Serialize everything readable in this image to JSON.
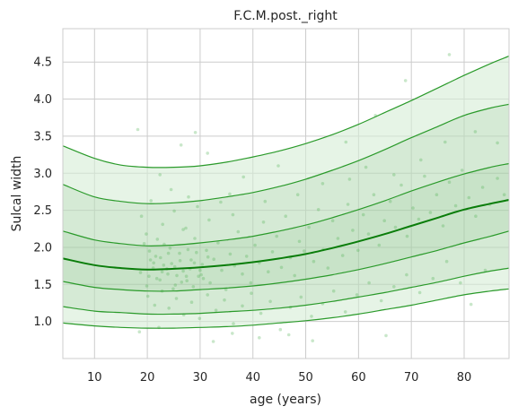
{
  "chart_data": {
    "type": "line",
    "title": "F.C.M.post._right",
    "xlabel": "age (years)",
    "ylabel": "Sulcal width",
    "xlim": [
      4,
      88.5
    ],
    "ylim": [
      0.5,
      4.95
    ],
    "xticks": [
      10,
      20,
      30,
      40,
      50,
      60,
      70,
      80
    ],
    "yticks": [
      1.0,
      1.5,
      2.0,
      2.5,
      3.0,
      3.5,
      4.0,
      4.5
    ],
    "xtick_labels": [
      "10",
      "20",
      "30",
      "40",
      "50",
      "60",
      "70",
      "80"
    ],
    "ytick_labels": [
      "1.0",
      "1.5",
      "2.0",
      "2.5",
      "3.0",
      "3.5",
      "4.0",
      "4.5"
    ],
    "grid": true,
    "legend": "none",
    "x": [
      4,
      10,
      15,
      20,
      25,
      30,
      35,
      40,
      45,
      50,
      55,
      60,
      65,
      70,
      75,
      80,
      85,
      88.5
    ],
    "series": [
      {
        "values": [
          3.37,
          3.2,
          3.11,
          3.08,
          3.08,
          3.1,
          3.15,
          3.22,
          3.3,
          3.4,
          3.52,
          3.66,
          3.82,
          3.98,
          4.15,
          4.32,
          4.48,
          4.58
        ]
      },
      {
        "values": [
          2.85,
          2.68,
          2.62,
          2.59,
          2.6,
          2.63,
          2.68,
          2.74,
          2.82,
          2.92,
          3.04,
          3.17,
          3.32,
          3.48,
          3.63,
          3.78,
          3.88,
          3.93
        ]
      },
      {
        "values": [
          2.22,
          2.1,
          2.05,
          2.02,
          2.03,
          2.06,
          2.1,
          2.15,
          2.22,
          2.3,
          2.4,
          2.51,
          2.63,
          2.76,
          2.88,
          2.99,
          3.08,
          3.13
        ]
      },
      {
        "values": [
          1.85,
          1.76,
          1.72,
          1.7,
          1.71,
          1.73,
          1.76,
          1.8,
          1.85,
          1.91,
          1.99,
          2.08,
          2.18,
          2.29,
          2.4,
          2.51,
          2.59,
          2.64
        ]
      },
      {
        "values": [
          1.54,
          1.46,
          1.43,
          1.41,
          1.41,
          1.43,
          1.45,
          1.48,
          1.52,
          1.57,
          1.63,
          1.7,
          1.78,
          1.87,
          1.96,
          2.06,
          2.15,
          2.22
        ]
      },
      {
        "values": [
          1.2,
          1.14,
          1.12,
          1.1,
          1.1,
          1.11,
          1.13,
          1.15,
          1.18,
          1.22,
          1.27,
          1.33,
          1.39,
          1.46,
          1.53,
          1.61,
          1.68,
          1.72
        ]
      },
      {
        "values": [
          0.98,
          0.94,
          0.92,
          0.91,
          0.91,
          0.92,
          0.93,
          0.95,
          0.98,
          1.01,
          1.05,
          1.1,
          1.16,
          1.22,
          1.29,
          1.36,
          1.41,
          1.44
        ]
      }
    ],
    "points": [
      [
        18.2,
        3.59
      ],
      [
        29.1,
        3.55
      ],
      [
        26.4,
        3.38
      ],
      [
        31.4,
        3.27
      ],
      [
        77.2,
        4.6
      ],
      [
        68.9,
        4.25
      ],
      [
        63.2,
        3.78
      ],
      [
        57.6,
        3.42
      ],
      [
        44.8,
        3.1
      ],
      [
        38.2,
        2.95
      ],
      [
        22.4,
        2.98
      ],
      [
        24.5,
        2.78
      ],
      [
        27.8,
        2.68
      ],
      [
        35.6,
        2.72
      ],
      [
        42.3,
        2.62
      ],
      [
        48.5,
        2.71
      ],
      [
        53.2,
        2.86
      ],
      [
        58.3,
        2.92
      ],
      [
        61.4,
        3.08
      ],
      [
        66.7,
        2.98
      ],
      [
        71.8,
        3.18
      ],
      [
        76.4,
        3.42
      ],
      [
        82.1,
        3.56
      ],
      [
        86.3,
        3.41
      ],
      [
        18.9,
        2.42
      ],
      [
        19.8,
        2.18
      ],
      [
        20.4,
        1.95
      ],
      [
        21.1,
        1.72
      ],
      [
        21.8,
        1.58
      ],
      [
        22.5,
        1.86
      ],
      [
        23.2,
        2.04
      ],
      [
        23.9,
        1.64
      ],
      [
        24.6,
        1.78
      ],
      [
        25.3,
        1.49
      ],
      [
        26.1,
        1.92
      ],
      [
        26.8,
        1.68
      ],
      [
        27.5,
        1.55
      ],
      [
        28.3,
        1.83
      ],
      [
        29.0,
        2.12
      ],
      [
        29.7,
        1.61
      ],
      [
        30.4,
        1.77
      ],
      [
        31.2,
        1.96
      ],
      [
        31.9,
        1.52
      ],
      [
        32.6,
        1.84
      ],
      [
        33.4,
        2.06
      ],
      [
        34.1,
        1.69
      ],
      [
        34.9,
        1.43
      ],
      [
        35.7,
        1.91
      ],
      [
        36.5,
        1.75
      ],
      [
        37.2,
        2.21
      ],
      [
        38.0,
        1.64
      ],
      [
        38.8,
        1.88
      ],
      [
        39.6,
        1.52
      ],
      [
        40.4,
        2.03
      ],
      [
        41.2,
        1.79
      ],
      [
        42.0,
        2.34
      ],
      [
        42.9,
        1.67
      ],
      [
        43.7,
        1.94
      ],
      [
        44.5,
        2.15
      ],
      [
        45.4,
        1.73
      ],
      [
        46.2,
        2.42
      ],
      [
        47.1,
        1.86
      ],
      [
        47.9,
        1.62
      ],
      [
        48.8,
        2.08
      ],
      [
        49.7,
        1.95
      ],
      [
        50.6,
        2.27
      ],
      [
        51.5,
        1.81
      ],
      [
        52.4,
        2.51
      ],
      [
        53.3,
        1.97
      ],
      [
        54.2,
        1.72
      ],
      [
        55.1,
        2.36
      ],
      [
        56.1,
        2.12
      ],
      [
        57.0,
        1.89
      ],
      [
        58.0,
        2.58
      ],
      [
        58.9,
        2.23
      ],
      [
        59.9,
        1.96
      ],
      [
        60.9,
        2.44
      ],
      [
        61.9,
        2.18
      ],
      [
        62.9,
        2.71
      ],
      [
        63.9,
        2.03
      ],
      [
        64.9,
        2.36
      ],
      [
        66.0,
        2.62
      ],
      [
        67.0,
        2.27
      ],
      [
        68.1,
        2.84
      ],
      [
        69.2,
        2.15
      ],
      [
        70.3,
        2.53
      ],
      [
        71.4,
        2.38
      ],
      [
        72.5,
        2.96
      ],
      [
        73.6,
        2.47
      ],
      [
        74.8,
        2.71
      ],
      [
        76.0,
        2.29
      ],
      [
        77.2,
        2.88
      ],
      [
        78.4,
        2.56
      ],
      [
        79.6,
        3.04
      ],
      [
        80.9,
        2.67
      ],
      [
        82.2,
        2.42
      ],
      [
        83.5,
        2.81
      ],
      [
        84.9,
        2.58
      ],
      [
        86.3,
        2.93
      ],
      [
        87.6,
        2.71
      ],
      [
        20.1,
        1.34
      ],
      [
        21.4,
        1.22
      ],
      [
        22.8,
        1.41
      ],
      [
        24.1,
        1.18
      ],
      [
        25.5,
        1.31
      ],
      [
        26.9,
        1.09
      ],
      [
        28.4,
        1.26
      ],
      [
        29.9,
        1.04
      ],
      [
        31.4,
        1.36
      ],
      [
        33.0,
        1.15
      ],
      [
        34.6,
        1.29
      ],
      [
        36.3,
        0.97
      ],
      [
        38.0,
        1.21
      ],
      [
        39.7,
        1.38
      ],
      [
        41.5,
        1.11
      ],
      [
        43.3,
        1.27
      ],
      [
        45.2,
        0.89
      ],
      [
        47.1,
        1.19
      ],
      [
        49.1,
        1.33
      ],
      [
        51.1,
        1.07
      ],
      [
        53.2,
        1.24
      ],
      [
        55.3,
        1.41
      ],
      [
        57.5,
        1.13
      ],
      [
        59.7,
        1.36
      ],
      [
        62.0,
        1.52
      ],
      [
        64.3,
        1.28
      ],
      [
        66.7,
        1.47
      ],
      [
        69.1,
        1.63
      ],
      [
        71.6,
        1.39
      ],
      [
        74.1,
        1.58
      ],
      [
        76.7,
        1.81
      ],
      [
        79.3,
        1.52
      ],
      [
        81.3,
        1.23
      ],
      [
        84.0,
        1.69
      ],
      [
        32.5,
        0.73
      ],
      [
        41.2,
        0.78
      ],
      [
        46.8,
        0.82
      ],
      [
        51.3,
        0.74
      ],
      [
        65.2,
        0.81
      ],
      [
        18.5,
        0.86
      ],
      [
        22.2,
        0.92
      ],
      [
        36.1,
        0.84
      ],
      [
        20.7,
        2.63
      ],
      [
        22.9,
        2.31
      ],
      [
        25.1,
        2.49
      ],
      [
        27.3,
        2.26
      ],
      [
        29.5,
        2.55
      ],
      [
        31.7,
        2.37
      ],
      [
        33.9,
        2.61
      ],
      [
        36.2,
        2.44
      ],
      [
        19.4,
        2.05
      ],
      [
        20.6,
        1.83
      ],
      [
        21.9,
        2.11
      ],
      [
        23.1,
        1.76
      ],
      [
        24.3,
        1.99
      ],
      [
        25.6,
        1.62
      ],
      [
        26.8,
        2.24
      ],
      [
        28.1,
        1.71
      ],
      [
        29.3,
        1.93
      ],
      [
        30.6,
        1.58
      ],
      [
        18.7,
        1.66
      ],
      [
        19.9,
        1.48
      ],
      [
        21.2,
        1.79
      ],
      [
        22.4,
        1.56
      ],
      [
        23.7,
        1.71
      ],
      [
        24.9,
        1.44
      ],
      [
        26.2,
        1.82
      ],
      [
        27.4,
        1.61
      ],
      [
        28.7,
        1.47
      ],
      [
        30.0,
        1.69
      ],
      [
        20.3,
        1.61
      ],
      [
        21.6,
        1.88
      ],
      [
        22.8,
        1.67
      ],
      [
        24.0,
        1.92
      ],
      [
        25.2,
        1.74
      ],
      [
        26.5,
        1.53
      ],
      [
        27.7,
        1.97
      ],
      [
        28.9,
        1.79
      ],
      [
        30.2,
        1.63
      ],
      [
        31.5,
        1.87
      ]
    ]
  }
}
